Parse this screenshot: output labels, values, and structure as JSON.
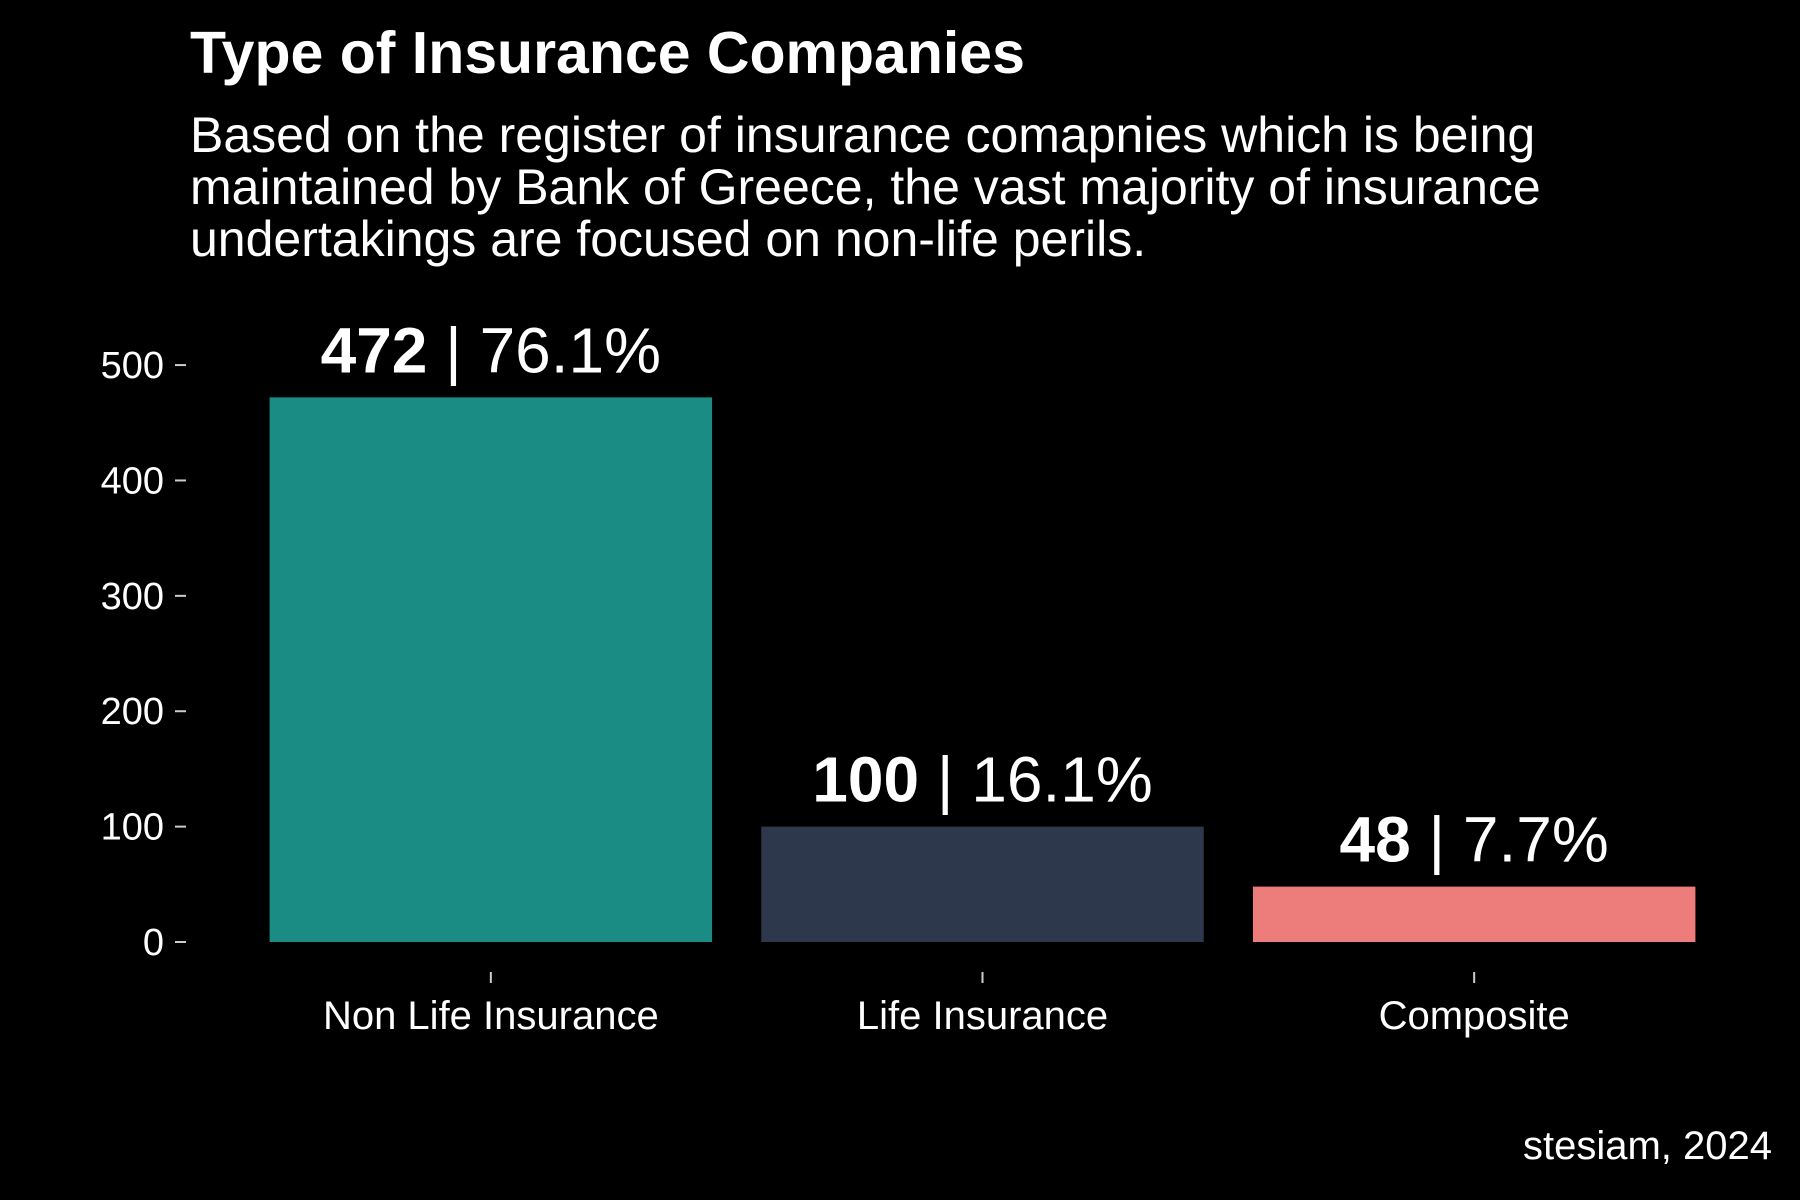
{
  "chart_data": {
    "type": "bar",
    "title": "Type of Insurance Companies",
    "subtitle": "Based on the register of insurance comapnies which is being maintained by Bank of Greece, the vast majority of insurance undertakings are focused on non-life perils.",
    "caption": "stesiam, 2024",
    "categories": [
      "Non Life Insurance",
      "Life Insurance",
      "Composite"
    ],
    "values": [
      472,
      100,
      48
    ],
    "value_labels": [
      "472",
      "100",
      "48"
    ],
    "percent_labels": [
      "76.1%",
      "16.1%",
      "7.7%"
    ],
    "label_separator": " | ",
    "bar_colors": [
      "#1a8c83",
      "#2d384d",
      "#ec7d7a"
    ],
    "xlabel": "",
    "ylabel": "",
    "ylim": [
      0,
      520
    ],
    "yticks": [
      0,
      100,
      200,
      300,
      400,
      500
    ],
    "ytick_labels": [
      "0",
      "100",
      "200",
      "300",
      "400",
      "500"
    ],
    "grid": false,
    "legend": "none",
    "background": "#000000",
    "text_color": "#ffffff"
  }
}
